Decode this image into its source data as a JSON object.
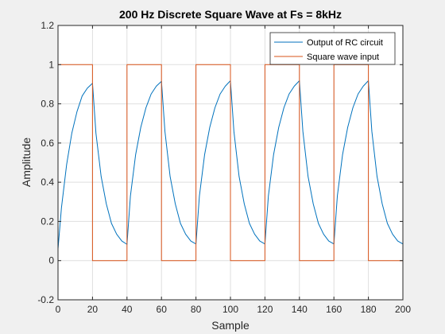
{
  "chart_data": {
    "type": "line",
    "title": "200 Hz Discrete Square Wave at Fs = 8kHz",
    "xlabel": "Sample",
    "ylabel": "Amplitude",
    "xlim": [
      0,
      200
    ],
    "ylim": [
      -0.2,
      1.2
    ],
    "xticks": [
      "0",
      "20",
      "40",
      "60",
      "80",
      "100",
      "120",
      "140",
      "160",
      "180",
      "200"
    ],
    "yticks": [
      "-0.2",
      "0",
      "0.2",
      "0.4",
      "0.6",
      "0.8",
      "1",
      "1.2"
    ],
    "grid": true,
    "legend_position": "top-right",
    "series": [
      {
        "name": "Output of RC circuit",
        "color": "#0072BD",
        "x": [
          0,
          2,
          5,
          8,
          11,
          14,
          17,
          20,
          22,
          25,
          28,
          31,
          34,
          37,
          40,
          42,
          45,
          48,
          51,
          54,
          57,
          60,
          62,
          65,
          68,
          71,
          74,
          77,
          80,
          82,
          85,
          88,
          91,
          94,
          97,
          100,
          102,
          105,
          108,
          111,
          114,
          117,
          120,
          122,
          125,
          128,
          131,
          134,
          137,
          140,
          142,
          145,
          148,
          151,
          154,
          157,
          160,
          162,
          165,
          168,
          171,
          174,
          177,
          180,
          182,
          185,
          188,
          191,
          194,
          197,
          200
        ],
        "y": [
          0.06,
          0.27,
          0.49,
          0.65,
          0.76,
          0.84,
          0.88,
          0.905,
          0.65,
          0.43,
          0.29,
          0.19,
          0.135,
          0.1,
          0.083,
          0.33,
          0.54,
          0.68,
          0.78,
          0.85,
          0.89,
          0.915,
          0.66,
          0.43,
          0.29,
          0.19,
          0.135,
          0.1,
          0.085,
          0.33,
          0.54,
          0.68,
          0.78,
          0.85,
          0.89,
          0.918,
          0.66,
          0.43,
          0.29,
          0.19,
          0.135,
          0.1,
          0.085,
          0.33,
          0.54,
          0.68,
          0.78,
          0.85,
          0.89,
          0.918,
          0.66,
          0.43,
          0.29,
          0.19,
          0.135,
          0.1,
          0.085,
          0.33,
          0.54,
          0.68,
          0.78,
          0.85,
          0.89,
          0.918,
          0.66,
          0.43,
          0.29,
          0.19,
          0.135,
          0.1,
          0.085
        ]
      },
      {
        "name": "Square wave input",
        "color": "#D95319",
        "x": [
          0,
          20,
          20,
          40,
          40,
          60,
          60,
          80,
          80,
          100,
          100,
          120,
          120,
          140,
          140,
          160,
          160,
          180,
          180,
          200
        ],
        "y": [
          1,
          1,
          0,
          0,
          1,
          1,
          0,
          0,
          1,
          1,
          0,
          0,
          1,
          1,
          0,
          0,
          1,
          1,
          0,
          0
        ]
      }
    ]
  }
}
